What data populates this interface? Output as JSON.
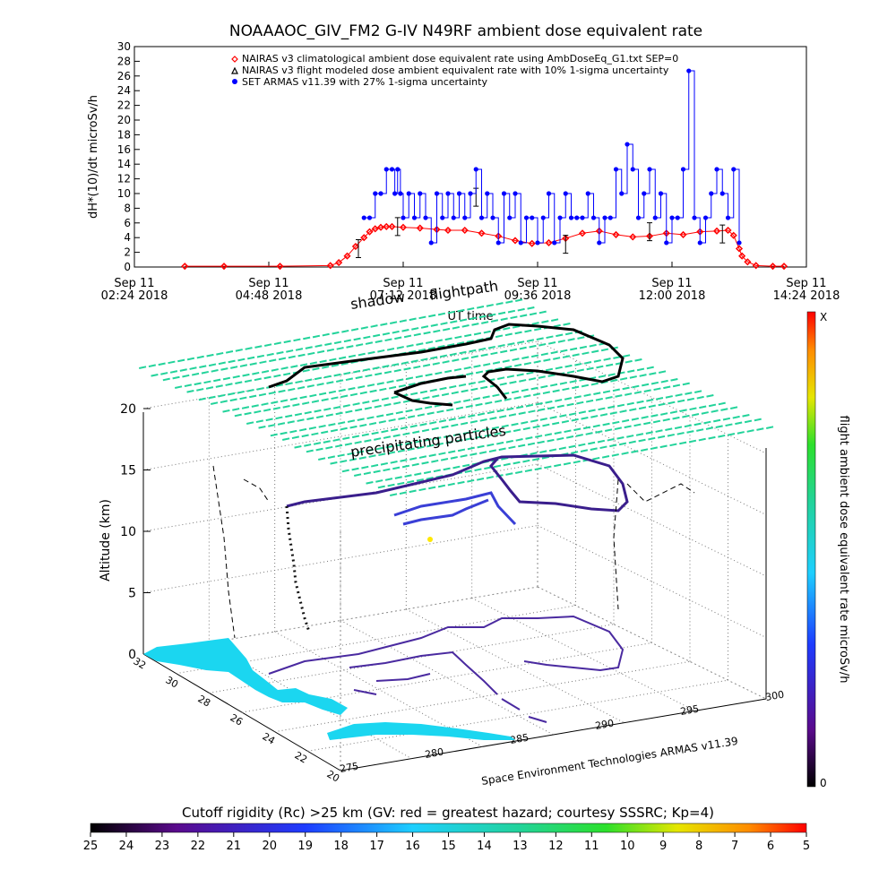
{
  "title": "NOAAAOC_GIV_FM2 G-IV   N49RF  ambient dose equivalent rate",
  "colors": {
    "nairas_clim": "#ff0000",
    "nairas_flight": "#000000",
    "armas": "#0000ff",
    "shadow_field": "#22d39a",
    "land": "#1bd6f0"
  },
  "chart_data": [
    {
      "type": "scatter",
      "ylabel": "dH*(10)/dt microSv/h",
      "xlabel": "UT time",
      "ylim": [
        0,
        30
      ],
      "yticks": [
        "0",
        "2",
        "4",
        "6",
        "8",
        "10",
        "12",
        "14",
        "16",
        "18",
        "20",
        "22",
        "24",
        "26",
        "28",
        "30"
      ],
      "xticks": [
        {
          "line1": "Sep 11",
          "line2": "02:24 2018"
        },
        {
          "line1": "Sep 11",
          "line2": "04:48 2018"
        },
        {
          "line1": "Sep 11",
          "line2": "07:12 2018"
        },
        {
          "line1": "Sep 11",
          "line2": "09:36 2018"
        },
        {
          "line1": "Sep 11",
          "line2": "12:00 2018"
        },
        {
          "line1": "Sep 11",
          "line2": "14:24 2018"
        }
      ],
      "legend": [
        "NAIRAS v3 climatological ambient dose equivalent rate using AmbDoseEq_G1.txt SEP=0",
        "NAIRAS v3 flight modeled dose ambient equivalent rate with 10% 1-sigma uncertainty",
        "SET ARMAS v11.39 with 27% 1-sigma uncertainty"
      ],
      "legend_position": "top",
      "x_hours": [
        2.4,
        14.4
      ],
      "series": [
        {
          "name": "NAIRAS v3 climatological ambient dose equivalent rate using AmbDoseEq_G1.txt SEP=0",
          "x": [
            3.3,
            4.0,
            5.0,
            5.9,
            6.05,
            6.2,
            6.35,
            6.5,
            6.6,
            6.7,
            6.8,
            6.9,
            7.0,
            7.2,
            7.5,
            7.8,
            8.0,
            8.3,
            8.6,
            8.9,
            9.2,
            9.5,
            9.8,
            10.1,
            10.4,
            10.7,
            11.0,
            11.3,
            11.6,
            11.9,
            12.2,
            12.5,
            12.8,
            13.0,
            13.1,
            13.2,
            13.25,
            13.35,
            13.5,
            13.8,
            14.0
          ],
          "y": [
            0.1,
            0.1,
            0.1,
            0.2,
            0.6,
            1.5,
            2.8,
            4.0,
            4.8,
            5.2,
            5.4,
            5.5,
            5.5,
            5.4,
            5.3,
            5.1,
            5.0,
            5.0,
            4.6,
            4.2,
            3.6,
            3.2,
            3.3,
            3.9,
            4.6,
            4.9,
            4.4,
            4.1,
            4.2,
            4.6,
            4.4,
            4.8,
            4.9,
            5.0,
            4.3,
            2.5,
            1.5,
            0.7,
            0.2,
            0.1,
            0.1
          ]
        },
        {
          "name": "NAIRAS v3 flight modeled dose ambient equivalent rate with 10% 1-sigma uncertainty",
          "x": [
            6.4,
            7.1,
            8.5,
            10.1,
            11.6,
            12.9
          ],
          "y": [
            2.5,
            5.5,
            9.5,
            3.1,
            4.8,
            4.5
          ]
        },
        {
          "name": "SET ARMAS v11.39 with 27% 1-sigma uncertainty",
          "x": [
            6.5,
            6.6,
            6.7,
            6.8,
            6.9,
            7.0,
            7.05,
            7.1,
            7.15,
            7.2,
            7.3,
            7.4,
            7.5,
            7.6,
            7.7,
            7.8,
            7.9,
            8.0,
            8.1,
            8.2,
            8.3,
            8.4,
            8.5,
            8.6,
            8.7,
            8.8,
            8.9,
            9.0,
            9.1,
            9.2,
            9.3,
            9.4,
            9.5,
            9.6,
            9.7,
            9.8,
            9.9,
            10.0,
            10.1,
            10.2,
            10.3,
            10.4,
            10.5,
            10.6,
            10.7,
            10.8,
            10.9,
            11.0,
            11.1,
            11.2,
            11.3,
            11.4,
            11.5,
            11.6,
            11.7,
            11.8,
            11.9,
            12.0,
            12.1,
            12.2,
            12.3,
            12.4,
            12.5,
            12.6,
            12.7,
            12.8,
            12.9,
            13.0,
            13.1,
            13.2
          ],
          "y": [
            6.7,
            6.7,
            10,
            10,
            13.3,
            13.3,
            10,
            13.3,
            10,
            6.7,
            10,
            6.7,
            10,
            6.7,
            3.3,
            10,
            6.7,
            10,
            6.7,
            10,
            6.7,
            10,
            13.3,
            6.7,
            10,
            6.7,
            3.3,
            10,
            6.7,
            10,
            3.3,
            6.7,
            6.7,
            3.3,
            6.7,
            10,
            3.3,
            6.7,
            10,
            6.7,
            6.7,
            6.7,
            10,
            6.7,
            3.3,
            6.7,
            6.7,
            13.3,
            10,
            16.7,
            13.3,
            6.7,
            10,
            13.3,
            6.7,
            10,
            3.3,
            6.7,
            6.7,
            13.3,
            26.7,
            6.7,
            3.3,
            6.7,
            10,
            13.3,
            10,
            6.7,
            13.3,
            3.3
          ]
        }
      ]
    },
    {
      "type": "scatter",
      "ylabel": "Altitude (km)",
      "zticks": [
        "0",
        "5",
        "10",
        "15",
        "20"
      ],
      "lat_ticks": [
        "32",
        "30",
        "28",
        "26",
        "24",
        "22",
        "20"
      ],
      "lon_ticks": [
        "275",
        "280",
        "285",
        "290",
        "295",
        "300"
      ],
      "annotations": [
        "shadow",
        "flightpath",
        "precipitating particles"
      ],
      "credit": "Space Environment Technologies ARMAS v11.39",
      "colorbar": {
        "label": "flight ambient dose equivalent rate microSv/h",
        "top_label": "X",
        "bottom_label": "0"
      }
    },
    {
      "type": "heatmap",
      "title": "Cutoff rigidity (Rc) >25 km (GV: red = greatest hazard; courtesy SSSRC; Kp=4)",
      "ticks": [
        "25",
        "24",
        "23",
        "22",
        "21",
        "20",
        "19",
        "18",
        "17",
        "16",
        "15",
        "14",
        "13",
        "12",
        "11",
        "10",
        "9",
        "8",
        "7",
        "6",
        "5"
      ]
    }
  ]
}
